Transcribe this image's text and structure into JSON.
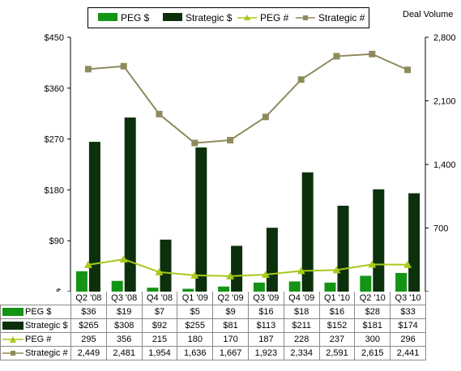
{
  "chart_data": {
    "type": "bar",
    "categories": [
      "Q2 '08",
      "Q3 '08",
      "Q4 '08",
      "Q1 '09",
      "Q2 '09",
      "Q3 '09",
      "Q4 '09",
      "Q1 '10",
      "Q2 '10",
      "Q3 '10"
    ],
    "series": [
      {
        "name": "PEG $",
        "type": "bar",
        "axis": "left",
        "color": "#149414",
        "values": [
          36,
          19,
          7,
          5,
          9,
          16,
          18,
          16,
          28,
          33
        ],
        "labels": [
          "$36",
          "$19",
          "$7",
          "$5",
          "$9",
          "$16",
          "$18",
          "$16",
          "$28",
          "$33"
        ]
      },
      {
        "name": "Strategic $",
        "type": "bar",
        "axis": "left",
        "color": "#0c300c",
        "values": [
          265,
          308,
          92,
          255,
          81,
          113,
          211,
          152,
          181,
          174
        ],
        "labels": [
          "$265",
          "$308",
          "$92",
          "$255",
          "$81",
          "$113",
          "$211",
          "$152",
          "$181",
          "$174"
        ]
      },
      {
        "name": "PEG #",
        "type": "line",
        "axis": "right",
        "color": "#a8c81c",
        "marker": "triangle",
        "values": [
          295,
          356,
          215,
          180,
          170,
          187,
          228,
          237,
          300,
          296
        ],
        "labels": [
          "295",
          "356",
          "215",
          "180",
          "170",
          "187",
          "228",
          "237",
          "300",
          "296"
        ]
      },
      {
        "name": "Strategic #",
        "type": "line",
        "axis": "right",
        "color": "#8e8a5c",
        "marker": "square",
        "values": [
          2449,
          2481,
          1954,
          1636,
          1667,
          1923,
          2334,
          2591,
          2615,
          2441
        ],
        "labels": [
          "2,449",
          "2,481",
          "1,954",
          "1,636",
          "1,667",
          "1,923",
          "2,334",
          "2,591",
          "2,615",
          "2,441"
        ]
      }
    ],
    "y_left": {
      "min": 0,
      "max": 450,
      "ticks": [
        0,
        90,
        180,
        270,
        360,
        450
      ],
      "tick_labels": [
        "$-",
        "$90",
        "$180",
        "$270",
        "$360",
        "$450"
      ]
    },
    "y_right": {
      "label": "Deal Volume",
      "min": 0,
      "max": 2800,
      "ticks": [
        0,
        700,
        1400,
        2100,
        2800
      ],
      "tick_labels": [
        "-",
        "700",
        "1,400",
        "2,100",
        "2,800"
      ]
    },
    "legend": {
      "position": "top",
      "labels": [
        "PEG $",
        "Strategic $",
        "PEG #",
        "Strategic #"
      ]
    },
    "grid": false
  }
}
